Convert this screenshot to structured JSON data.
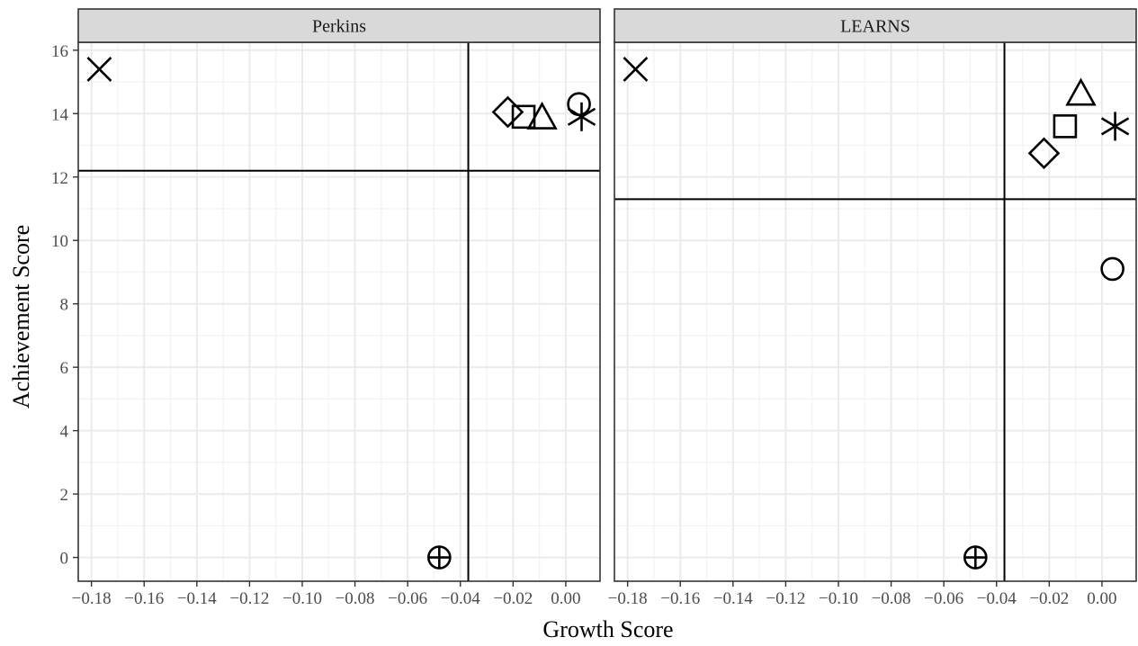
{
  "chart_data": {
    "type": "scatter",
    "xlabel": "Growth Score",
    "ylabel": "Achievement Score",
    "grid": true,
    "x_ticks": [
      -0.18,
      -0.16,
      -0.14,
      -0.12,
      -0.1,
      -0.08,
      -0.06,
      -0.04,
      -0.02,
      0.0
    ],
    "x_tick_labels": [
      "−0.18",
      "−0.16",
      "−0.14",
      "−0.12",
      "−0.10",
      "−0.08",
      "−0.06",
      "−0.04",
      "−0.02",
      "0.00"
    ],
    "y_ticks": [
      0,
      2,
      4,
      6,
      8,
      10,
      12,
      14,
      16
    ],
    "y_tick_labels": [
      "0",
      "2",
      "4",
      "6",
      "8",
      "10",
      "12",
      "14",
      "16"
    ],
    "xlim": [
      -0.185,
      0.013
    ],
    "ylim": [
      -0.75,
      16.25
    ],
    "panels": [
      {
        "title": "Perkins",
        "ref_x": -0.037,
        "ref_y": 12.2,
        "points": [
          {
            "shape": "x",
            "x": -0.177,
            "y": 15.4
          },
          {
            "shape": "circle-plus",
            "x": -0.048,
            "y": 0.0
          },
          {
            "shape": "diamond",
            "x": -0.022,
            "y": 14.05
          },
          {
            "shape": "square",
            "x": -0.016,
            "y": 13.9
          },
          {
            "shape": "triangle",
            "x": -0.009,
            "y": 13.85
          },
          {
            "shape": "circle",
            "x": 0.005,
            "y": 14.3
          },
          {
            "shape": "asterisk",
            "x": 0.006,
            "y": 13.9
          }
        ]
      },
      {
        "title": "LEARNS",
        "ref_x": -0.037,
        "ref_y": 11.3,
        "points": [
          {
            "shape": "x",
            "x": -0.177,
            "y": 15.4
          },
          {
            "shape": "circle-plus",
            "x": -0.048,
            "y": 0.0
          },
          {
            "shape": "diamond",
            "x": -0.022,
            "y": 12.75
          },
          {
            "shape": "square",
            "x": -0.014,
            "y": 13.6
          },
          {
            "shape": "triangle",
            "x": -0.008,
            "y": 14.6
          },
          {
            "shape": "circle",
            "x": 0.004,
            "y": 9.1
          },
          {
            "shape": "asterisk",
            "x": 0.005,
            "y": 13.6
          }
        ]
      }
    ]
  }
}
